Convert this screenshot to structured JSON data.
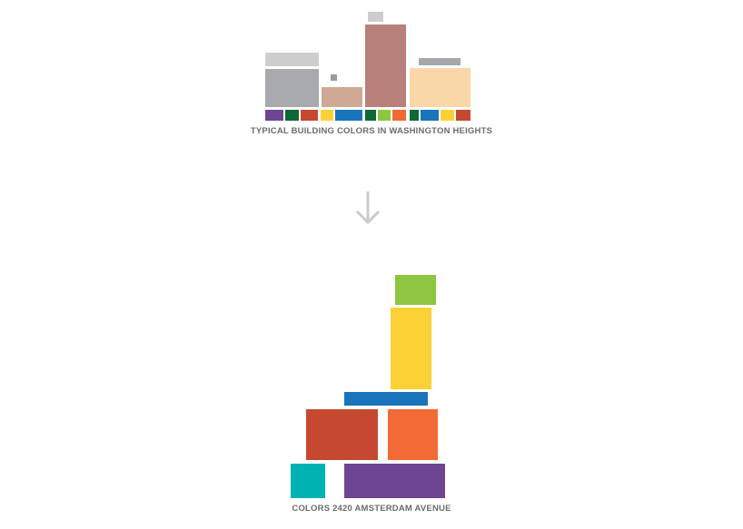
{
  "top_section": {
    "caption": "TYPICAL BUILDING COLORS IN WASHINGTON HEIGHTS",
    "building_colors": [
      "#cdcdd0",
      "#a9aaad",
      "#cfa995",
      "#9c9c9c",
      "#b9817b",
      "#f9d7a9",
      "#a6a7aa"
    ],
    "accent_strip": [
      "#6e4593",
      "#0e6737",
      "#c44930",
      "#fcd135",
      "#1a74bb",
      "#1a74bb",
      "#0e6737",
      "#8dc63f",
      "#f26a36",
      "#0e6737",
      "#1a74bb",
      "#fcd135",
      "#c44930"
    ]
  },
  "arrow": {
    "icon": "arrow-down-icon",
    "color": "#cbcbcb"
  },
  "bottom_section": {
    "caption": "COLORS 2420 AMSTERDAM AVENUE",
    "block_colors": [
      "#8dc63f",
      "#fcd135",
      "#1a74bb",
      "#c44930",
      "#f26a36",
      "#00b2b1",
      "#6e4593"
    ]
  }
}
